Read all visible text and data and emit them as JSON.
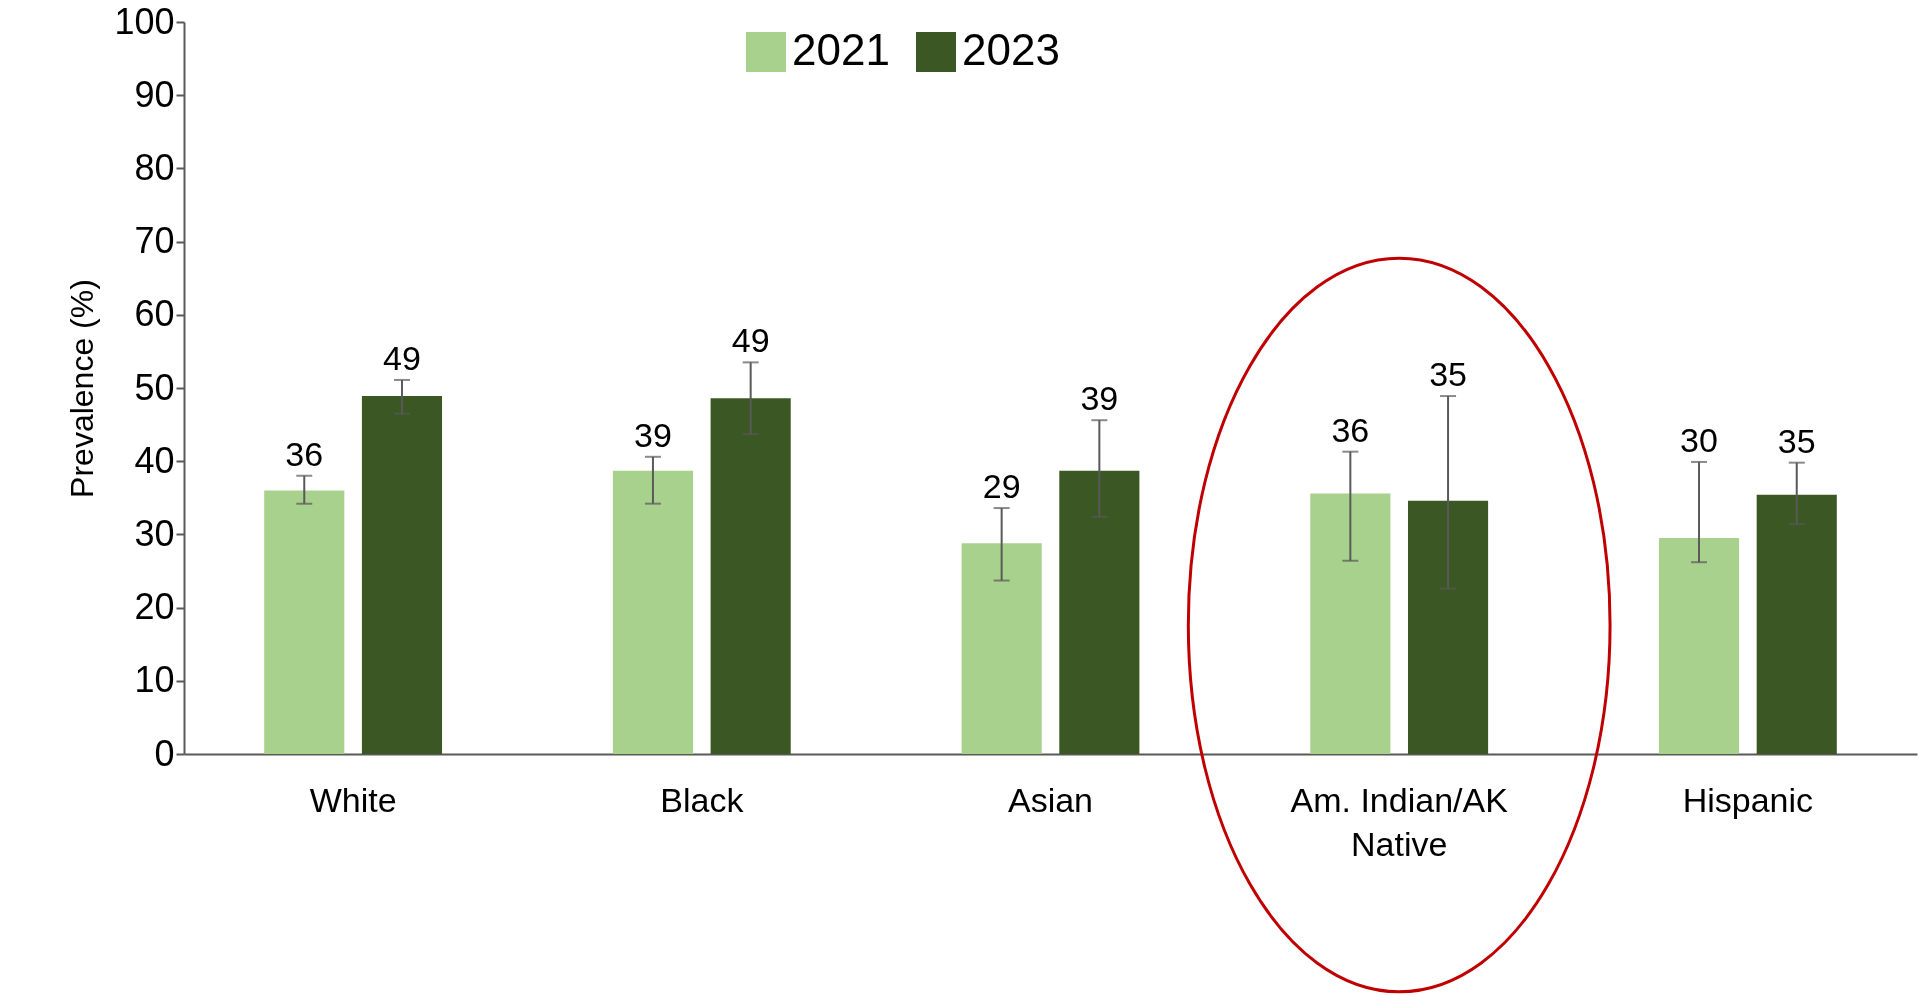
{
  "chart_data": {
    "type": "bar",
    "ylabel": "Prevalence (%)",
    "categories": [
      "White",
      "Black",
      "Asian",
      "Am. Indian/AK Native",
      "Hispanic"
    ],
    "ylim": [
      0,
      100
    ],
    "yticks": [
      0,
      10,
      20,
      30,
      40,
      50,
      60,
      70,
      80,
      90,
      100
    ],
    "grid": false,
    "legend": "top",
    "series": [
      {
        "name": "2021",
        "color": "#a9d18e",
        "values": [
          36.0,
          38.7,
          28.8,
          35.6,
          29.5
        ],
        "errors": [
          [
            34.2,
            38.0
          ],
          [
            34.2,
            40.6
          ],
          [
            23.7,
            33.6
          ],
          [
            26.4,
            41.3
          ],
          [
            26.2,
            39.9
          ]
        ],
        "value_labels": [
          "36",
          "39",
          "29",
          "36",
          "30"
        ]
      },
      {
        "name": "2023",
        "color": "#3b5723",
        "values": [
          48.9,
          48.6,
          38.7,
          34.6,
          35.4
        ],
        "errors": [
          [
            46.5,
            51.1
          ],
          [
            43.7,
            53.5
          ],
          [
            32.4,
            45.6
          ],
          [
            22.6,
            48.9
          ],
          [
            31.4,
            39.8
          ]
        ],
        "value_labels": [
          "49",
          "49",
          "39",
          "35",
          "35"
        ]
      }
    ]
  }
}
